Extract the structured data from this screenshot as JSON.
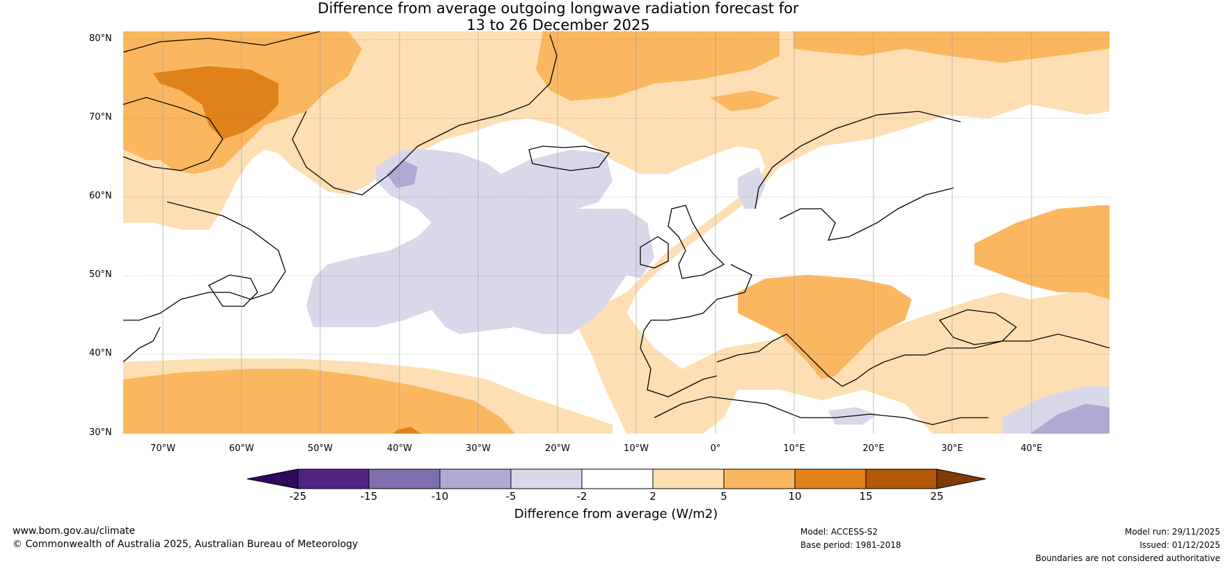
{
  "title": {
    "line1": "Difference from average outgoing longwave radiation forecast for",
    "line2": "13 to 26 December 2025"
  },
  "map": {
    "lat_labels": [
      "80°N",
      "70°N",
      "60°N",
      "50°N",
      "40°N",
      "30°N"
    ],
    "lon_labels": [
      "70°W",
      "60°W",
      "50°W",
      "40°W",
      "30°W",
      "20°W",
      "10°W",
      "0°",
      "10°E",
      "20°E",
      "30°E",
      "40°E"
    ],
    "lat_range": [
      30,
      81
    ],
    "lon_range": [
      -75,
      50
    ]
  },
  "colorbar": {
    "tick_labels": [
      "-25",
      "-15",
      "-10",
      "-5",
      "-2",
      "2",
      "5",
      "10",
      "15",
      "25"
    ],
    "label": "Difference from average (W/m2)",
    "colors": [
      "#2d0a5a",
      "#4f2380",
      "#7f70ad",
      "#b0a9d2",
      "#d9d8ea",
      "#ffffff",
      "#fddfb3",
      "#fbb760",
      "#e08219",
      "#b35807",
      "#7f3b08"
    ]
  },
  "footer": {
    "url": "www.bom.gov.au/climate",
    "copyright": "© Commonwealth of Australia 2025, Australian Bureau of Meteorology",
    "model": "Model: ACCESS-S2",
    "base_period": "Base period: 1981-2018",
    "model_run": "Model run: 29/11/2025",
    "issued": "Issued: 01/12/2025",
    "boundaries": "Boundaries are not considered authoritative"
  }
}
